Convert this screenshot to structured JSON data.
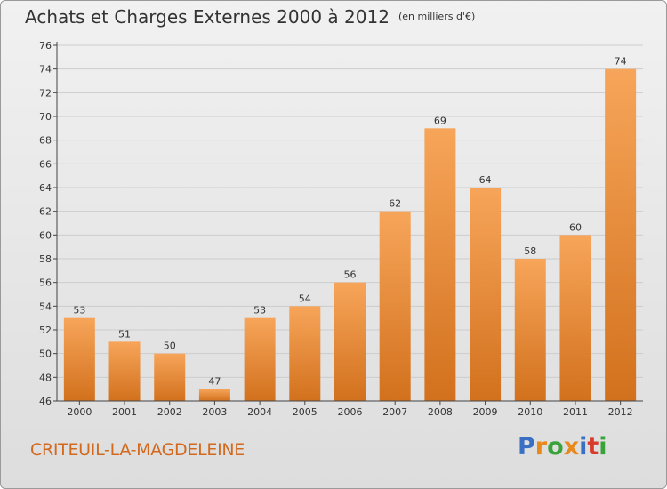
{
  "header": {
    "title": "Achats et Charges Externes 2000 à 2012",
    "unit": "(en milliers d'€)"
  },
  "footer": {
    "commune": "CRITEUIL-LA-MAGDELEINE",
    "logo_letters": [
      {
        "ch": "P",
        "color": "#3a6fc4"
      },
      {
        "ch": "r",
        "color": "#e8891c"
      },
      {
        "ch": "o",
        "color": "#3aa23a"
      },
      {
        "ch": "x",
        "color": "#e8891c"
      },
      {
        "ch": "i",
        "color": "#3a6fc4"
      },
      {
        "ch": "t",
        "color": "#d93b2b"
      },
      {
        "ch": "i",
        "color": "#3aa23a"
      }
    ]
  },
  "colors": {
    "bar_top": "#f7a55a",
    "bar_bottom": "#d2711d",
    "grid": "#cccccc",
    "axis": "#444444",
    "text": "#333333"
  },
  "chart_data": {
    "type": "bar",
    "title": "Achats et Charges Externes 2000 à 2012",
    "subtitle": "(en milliers d'€)",
    "xlabel": "",
    "ylabel": "",
    "categories": [
      "2000",
      "2001",
      "2002",
      "2003",
      "2004",
      "2005",
      "2006",
      "2007",
      "2008",
      "2009",
      "2010",
      "2011",
      "2012"
    ],
    "values": [
      53,
      51,
      50,
      47,
      53,
      54,
      56,
      62,
      69,
      64,
      58,
      60,
      74
    ],
    "ylim": [
      46,
      76
    ],
    "yticks": [
      46,
      48,
      50,
      52,
      54,
      56,
      58,
      60,
      62,
      64,
      66,
      68,
      70,
      72,
      74,
      76
    ],
    "grid": true,
    "data_labels": true
  }
}
